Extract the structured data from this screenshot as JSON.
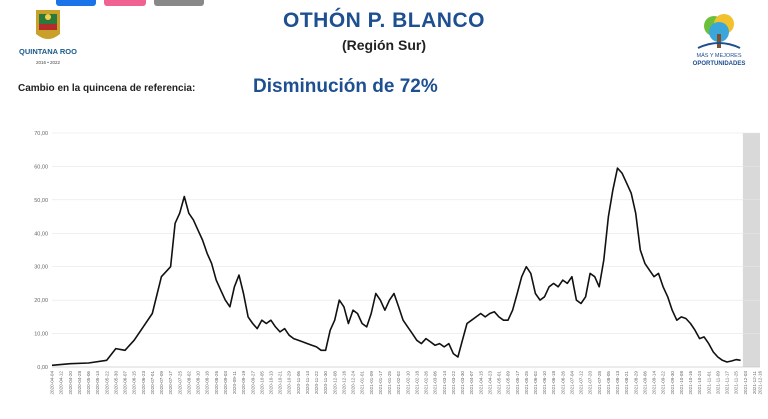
{
  "header": {
    "title": "OTHÓN P. BLANCO",
    "subtitle": "(Región Sur)",
    "left_logo": {
      "icon": "quintana-roo-shield-icon",
      "text": "QUINTANA ROO",
      "years": "2016 • 2022"
    },
    "right_logo": {
      "icon": "tree-logo-icon",
      "line1": "MÁS Y MEJORES",
      "line2": "OPORTUNIDADES"
    }
  },
  "summary": {
    "label": "Cambio en la quincena de referencia:",
    "value": "Disminución de 72%"
  },
  "colors": {
    "title": "#1d4f91",
    "line": "#111111",
    "shade": "#d9d9d9",
    "grid": "#e6e6e6"
  },
  "chart_data": {
    "type": "line",
    "title": "",
    "xlabel": "",
    "ylabel": "",
    "ylim": [
      0,
      70
    ],
    "yticks": [
      "0,00",
      "10,00",
      "20,00",
      "30,00",
      "40,00",
      "50,00",
      "60,00",
      "70,00"
    ],
    "x_start": "2020-04-04",
    "x_end": "2021-12-16",
    "xticks": [
      "2020-04-04",
      "2020-04-12",
      "2020-04-20",
      "2020-04-28",
      "2020-05-06",
      "2020-05-14",
      "2020-05-22",
      "2020-05-30",
      "2020-06-07",
      "2020-06-15",
      "2020-06-23",
      "2020-07-01",
      "2020-07-09",
      "2020-07-17",
      "2020-07-25",
      "2020-08-02",
      "2020-08-10",
      "2020-08-18",
      "2020-08-26",
      "2020-09-03",
      "2020-09-11",
      "2020-09-19",
      "2020-09-27",
      "2020-10-05",
      "2020-10-13",
      "2020-10-21",
      "2020-10-29",
      "2020-11-06",
      "2020-11-14",
      "2020-11-22",
      "2020-11-30",
      "2020-12-08",
      "2020-12-16",
      "2020-12-24",
      "2021-01-01",
      "2021-01-09",
      "2021-01-17",
      "2021-01-25",
      "2021-02-02",
      "2021-02-10",
      "2021-02-18",
      "2021-02-26",
      "2021-03-06",
      "2021-03-14",
      "2021-03-22",
      "2021-03-30",
      "2021-04-07",
      "2021-04-15",
      "2021-04-23",
      "2021-05-01",
      "2021-05-09",
      "2021-05-17",
      "2021-05-25",
      "2021-06-02",
      "2021-06-10",
      "2021-06-18",
      "2021-06-26",
      "2021-07-04",
      "2021-07-12",
      "2021-07-20",
      "2021-07-28",
      "2021-08-05",
      "2021-08-13",
      "2021-08-21",
      "2021-08-29",
      "2021-09-06",
      "2021-09-14",
      "2021-09-22",
      "2021-09-30",
      "2021-10-08",
      "2021-10-16",
      "2021-10-24",
      "2021-11-01",
      "2021-11-09",
      "2021-11-17",
      "2021-11-25",
      "2021-12-03",
      "2021-12-11",
      "2021-12-16"
    ],
    "shaded_from": "2021-12-01",
    "series": [
      {
        "name": "",
        "points": [
          [
            "2020-04-04",
            0.5
          ],
          [
            "2020-04-20",
            1.0
          ],
          [
            "2020-05-06",
            1.2
          ],
          [
            "2020-05-22",
            2.0
          ],
          [
            "2020-05-30",
            5.5
          ],
          [
            "2020-06-07",
            5.0
          ],
          [
            "2020-06-15",
            8.0
          ],
          [
            "2020-06-23",
            12.0
          ],
          [
            "2020-07-01",
            16.0
          ],
          [
            "2020-07-09",
            27.0
          ],
          [
            "2020-07-17",
            30.0
          ],
          [
            "2020-07-21",
            43.0
          ],
          [
            "2020-07-25",
            46.0
          ],
          [
            "2020-07-29",
            51.0
          ],
          [
            "2020-08-02",
            46.0
          ],
          [
            "2020-08-06",
            44.0
          ],
          [
            "2020-08-10",
            41.0
          ],
          [
            "2020-08-14",
            38.0
          ],
          [
            "2020-08-18",
            34.0
          ],
          [
            "2020-08-22",
            31.0
          ],
          [
            "2020-08-26",
            26.0
          ],
          [
            "2020-08-30",
            23.0
          ],
          [
            "2020-09-03",
            20.0
          ],
          [
            "2020-09-07",
            18.0
          ],
          [
            "2020-09-11",
            24.0
          ],
          [
            "2020-09-15",
            27.5
          ],
          [
            "2020-09-19",
            22.0
          ],
          [
            "2020-09-23",
            15.0
          ],
          [
            "2020-09-27",
            13.0
          ],
          [
            "2020-10-01",
            11.5
          ],
          [
            "2020-10-05",
            14.0
          ],
          [
            "2020-10-09",
            13.0
          ],
          [
            "2020-10-13",
            14.0
          ],
          [
            "2020-10-17",
            12.0
          ],
          [
            "2020-10-21",
            10.5
          ],
          [
            "2020-10-25",
            11.5
          ],
          [
            "2020-10-29",
            9.5
          ],
          [
            "2020-11-02",
            8.5
          ],
          [
            "2020-11-06",
            8.0
          ],
          [
            "2020-11-10",
            7.5
          ],
          [
            "2020-11-14",
            7.0
          ],
          [
            "2020-11-18",
            6.5
          ],
          [
            "2020-11-22",
            6.0
          ],
          [
            "2020-11-26",
            5.0
          ],
          [
            "2020-11-30",
            5.0
          ],
          [
            "2020-12-04",
            11.0
          ],
          [
            "2020-12-08",
            14.0
          ],
          [
            "2020-12-12",
            20.0
          ],
          [
            "2020-12-16",
            18.0
          ],
          [
            "2020-12-20",
            13.0
          ],
          [
            "2020-12-24",
            17.0
          ],
          [
            "2020-12-28",
            16.0
          ],
          [
            "2021-01-01",
            13.0
          ],
          [
            "2021-01-05",
            12.0
          ],
          [
            "2021-01-09",
            16.0
          ],
          [
            "2021-01-13",
            22.0
          ],
          [
            "2021-01-17",
            20.0
          ],
          [
            "2021-01-21",
            17.0
          ],
          [
            "2021-01-25",
            20.0
          ],
          [
            "2021-01-29",
            22.0
          ],
          [
            "2021-02-02",
            18.0
          ],
          [
            "2021-02-06",
            14.0
          ],
          [
            "2021-02-10",
            12.0
          ],
          [
            "2021-02-14",
            10.0
          ],
          [
            "2021-02-18",
            8.0
          ],
          [
            "2021-02-22",
            7.0
          ],
          [
            "2021-02-26",
            8.5
          ],
          [
            "2021-03-02",
            7.5
          ],
          [
            "2021-03-06",
            6.5
          ],
          [
            "2021-03-10",
            7.0
          ],
          [
            "2021-03-14",
            6.0
          ],
          [
            "2021-03-18",
            7.0
          ],
          [
            "2021-03-22",
            4.0
          ],
          [
            "2021-03-26",
            3.0
          ],
          [
            "2021-03-30",
            8.0
          ],
          [
            "2021-04-03",
            13.0
          ],
          [
            "2021-04-07",
            14.0
          ],
          [
            "2021-04-11",
            15.0
          ],
          [
            "2021-04-15",
            16.0
          ],
          [
            "2021-04-19",
            15.0
          ],
          [
            "2021-04-23",
            16.0
          ],
          [
            "2021-04-27",
            16.5
          ],
          [
            "2021-05-01",
            15.0
          ],
          [
            "2021-05-05",
            14.0
          ],
          [
            "2021-05-09",
            14.0
          ],
          [
            "2021-05-13",
            17.0
          ],
          [
            "2021-05-17",
            22.0
          ],
          [
            "2021-05-21",
            27.0
          ],
          [
            "2021-05-25",
            30.0
          ],
          [
            "2021-05-29",
            28.0
          ],
          [
            "2021-06-02",
            22.0
          ],
          [
            "2021-06-06",
            20.0
          ],
          [
            "2021-06-10",
            21.0
          ],
          [
            "2021-06-14",
            24.0
          ],
          [
            "2021-06-18",
            25.0
          ],
          [
            "2021-06-22",
            24.0
          ],
          [
            "2021-06-26",
            26.0
          ],
          [
            "2021-06-30",
            25.0
          ],
          [
            "2021-07-04",
            27.0
          ],
          [
            "2021-07-08",
            20.0
          ],
          [
            "2021-07-12",
            19.0
          ],
          [
            "2021-07-16",
            21.0
          ],
          [
            "2021-07-20",
            28.0
          ],
          [
            "2021-07-24",
            27.0
          ],
          [
            "2021-07-28",
            24.0
          ],
          [
            "2021-08-01",
            32.0
          ],
          [
            "2021-08-05",
            45.0
          ],
          [
            "2021-08-09",
            53.0
          ],
          [
            "2021-08-13",
            59.5
          ],
          [
            "2021-08-17",
            58.0
          ],
          [
            "2021-08-21",
            55.0
          ],
          [
            "2021-08-25",
            52.0
          ],
          [
            "2021-08-29",
            46.0
          ],
          [
            "2021-09-02",
            35.0
          ],
          [
            "2021-09-06",
            31.0
          ],
          [
            "2021-09-10",
            29.0
          ],
          [
            "2021-09-14",
            27.0
          ],
          [
            "2021-09-18",
            28.0
          ],
          [
            "2021-09-22",
            24.0
          ],
          [
            "2021-09-26",
            21.0
          ],
          [
            "2021-09-30",
            17.0
          ],
          [
            "2021-10-04",
            14.0
          ],
          [
            "2021-10-08",
            15.0
          ],
          [
            "2021-10-12",
            14.5
          ],
          [
            "2021-10-16",
            13.0
          ],
          [
            "2021-10-20",
            11.0
          ],
          [
            "2021-10-24",
            8.5
          ],
          [
            "2021-10-28",
            9.0
          ],
          [
            "2021-11-01",
            7.0
          ],
          [
            "2021-11-05",
            4.5
          ],
          [
            "2021-11-09",
            3.0
          ],
          [
            "2021-11-13",
            2.0
          ],
          [
            "2021-11-17",
            1.5
          ],
          [
            "2021-11-21",
            1.8
          ],
          [
            "2021-11-25",
            2.2
          ],
          [
            "2021-11-29",
            2.0
          ]
        ]
      }
    ]
  }
}
